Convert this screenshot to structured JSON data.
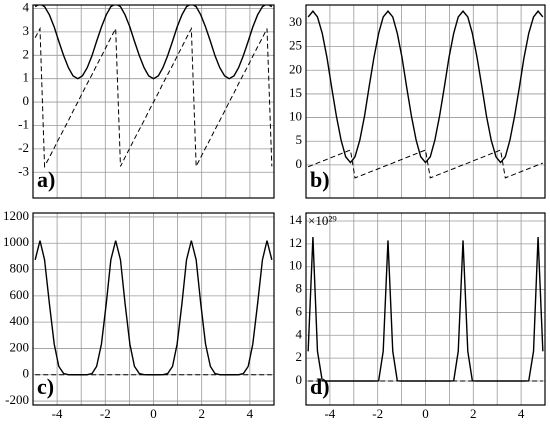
{
  "chart_data": [
    {
      "type": "line",
      "label": "a)",
      "xlim": [
        -5,
        5
      ],
      "ylim": [
        -4.1,
        4.15
      ],
      "xgrid": [
        -5,
        -4,
        -3,
        -2,
        -1,
        0,
        1,
        2,
        3,
        4,
        5
      ],
      "yticks": [
        -3,
        -2,
        -1,
        0,
        1,
        2,
        3,
        4
      ],
      "grid": true,
      "x": [
        -4.91,
        -4.71,
        -4.52,
        -4.32,
        -4.12,
        -3.93,
        -3.73,
        -3.53,
        -3.34,
        -3.14,
        -2.95,
        -2.75,
        -2.55,
        -2.36,
        -2.16,
        -1.96,
        -1.77,
        -1.57,
        -1.37,
        -1.18,
        -0.98,
        -0.79,
        -0.59,
        -0.39,
        -0.2,
        0,
        0.2,
        0.39,
        0.59,
        0.79,
        0.98,
        1.18,
        1.37,
        1.57,
        1.77,
        1.96,
        2.16,
        2.36,
        2.55,
        2.75,
        2.95,
        3.14,
        3.34,
        3.53,
        3.73,
        3.93,
        4.12,
        4.32,
        4.52,
        4.71,
        4.91
      ],
      "series": [
        {
          "style": "solid",
          "color": "#000000",
          "values": [
            4.08,
            4.2,
            4.08,
            3.73,
            3.21,
            2.6,
            1.99,
            1.47,
            1.12,
            1.0,
            1.12,
            1.47,
            1.99,
            2.6,
            3.21,
            3.73,
            4.08,
            4.2,
            4.08,
            3.73,
            3.21,
            2.6,
            1.99,
            1.47,
            1.12,
            1.0,
            1.12,
            1.47,
            1.99,
            2.6,
            3.21,
            3.73,
            4.08,
            4.2,
            4.08,
            3.73,
            3.21,
            2.6,
            1.99,
            1.47,
            1.12,
            1.0,
            1.12,
            1.47,
            1.99,
            2.6,
            3.21,
            3.73,
            4.08,
            4.2,
            4.08
          ]
        },
        {
          "style": "dashed",
          "color": "#000000",
          "values": [
            2.75,
            3.14,
            -2.75,
            -2.36,
            -1.96,
            -1.57,
            -1.18,
            -0.79,
            -0.39,
            0,
            0.39,
            0.79,
            1.18,
            1.57,
            1.96,
            2.36,
            2.75,
            3.14,
            -2.75,
            -2.36,
            -1.96,
            -1.57,
            -1.18,
            -0.79,
            -0.39,
            0,
            0.39,
            0.79,
            1.18,
            1.57,
            1.96,
            2.36,
            2.75,
            3.14,
            -2.75,
            -2.36,
            -1.96,
            -1.57,
            -1.18,
            -0.79,
            -0.39,
            0,
            0.39,
            0.79,
            1.18,
            1.57,
            1.96,
            2.36,
            2.75,
            3.14,
            -2.75
          ]
        }
      ]
    },
    {
      "type": "line",
      "label": "b)",
      "xlim": [
        -5,
        5
      ],
      "ylim": [
        -7,
        33.8
      ],
      "xgrid": [
        -5,
        -4,
        -3,
        -2,
        -1,
        0,
        1,
        2,
        3,
        4,
        5
      ],
      "yticks": [
        0,
        5,
        10,
        15,
        20,
        25,
        30
      ],
      "grid": true,
      "x": [
        -4.91,
        -4.71,
        -4.52,
        -4.32,
        -4.12,
        -3.93,
        -3.73,
        -3.53,
        -3.34,
        -3.14,
        -2.95,
        -2.75,
        -2.55,
        -2.36,
        -2.16,
        -1.96,
        -1.77,
        -1.57,
        -1.37,
        -1.18,
        -0.98,
        -0.79,
        -0.59,
        -0.39,
        -0.2,
        0,
        0.2,
        0.39,
        0.59,
        0.79,
        0.98,
        1.18,
        1.37,
        1.57,
        1.77,
        1.96,
        2.16,
        2.36,
        2.55,
        2.75,
        2.95,
        3.14,
        3.34,
        3.53,
        3.73,
        3.93,
        4.12,
        4.32,
        4.52,
        4.71,
        4.91
      ],
      "series": [
        {
          "style": "solid",
          "color": "#000000",
          "values": [
            31.28,
            32.5,
            31.28,
            27.81,
            22.63,
            16.5,
            10.37,
            5.19,
            1.72,
            0.5,
            1.72,
            5.19,
            10.37,
            16.5,
            22.63,
            27.81,
            31.28,
            32.5,
            31.28,
            27.81,
            22.63,
            16.5,
            10.37,
            5.19,
            1.72,
            0.5,
            1.72,
            5.19,
            10.37,
            16.5,
            22.63,
            27.81,
            31.28,
            32.5,
            31.28,
            27.81,
            22.63,
            16.5,
            10.37,
            5.19,
            1.72,
            0.5,
            1.72,
            5.19,
            10.37,
            16.5,
            22.63,
            27.81,
            31.28,
            32.5,
            31.28
          ]
        },
        {
          "style": "dashed",
          "color": "#000000",
          "values": [
            -0.39,
            0,
            0.39,
            0.79,
            1.18,
            1.57,
            1.96,
            2.36,
            2.75,
            3.14,
            -2.75,
            -2.36,
            -1.96,
            -1.57,
            -1.18,
            -0.79,
            -0.39,
            0,
            0.39,
            0.79,
            1.18,
            1.57,
            1.96,
            2.36,
            2.75,
            3.14,
            -2.75,
            -2.36,
            -1.96,
            -1.57,
            -1.18,
            -0.79,
            -0.39,
            0,
            0.39,
            0.79,
            1.18,
            1.57,
            1.96,
            2.36,
            2.75,
            3.14,
            -2.75,
            -2.36,
            -1.96,
            -1.57,
            -1.18,
            -0.79,
            -0.39,
            0,
            0.39
          ]
        }
      ]
    },
    {
      "type": "line",
      "label": "c)",
      "xlim": [
        -5,
        5
      ],
      "ylim": [
        -230,
        1230
      ],
      "xgrid": [
        -5,
        -4,
        -3,
        -2,
        -1,
        0,
        1,
        2,
        3,
        4,
        5
      ],
      "xticks": [
        -4,
        -2,
        0,
        2,
        4
      ],
      "yticks": [
        -200,
        0,
        200,
        400,
        600,
        800,
        1000,
        1200
      ],
      "grid": true,
      "x": [
        -4.91,
        -4.71,
        -4.52,
        -4.32,
        -4.12,
        -3.93,
        -3.73,
        -3.53,
        -3.34,
        -3.14,
        -2.95,
        -2.75,
        -2.55,
        -2.36,
        -2.16,
        -1.96,
        -1.77,
        -1.57,
        -1.37,
        -1.18,
        -0.98,
        -0.79,
        -0.59,
        -0.39,
        -0.2,
        0,
        0.2,
        0.39,
        0.59,
        0.79,
        0.98,
        1.18,
        1.37,
        1.57,
        1.77,
        1.96,
        2.16,
        2.36,
        2.55,
        2.75,
        2.95,
        3.14,
        3.34,
        3.53,
        3.73,
        3.93,
        4.12,
        4.32,
        4.52,
        4.71,
        4.91
      ],
      "series": [
        {
          "style": "solid",
          "color": "#000000",
          "values": [
            874,
            1020,
            874,
            541,
            233,
            63.8,
            9.2,
            0.5,
            0,
            0,
            0,
            0.5,
            9.2,
            63.8,
            233,
            541,
            874,
            1020,
            874,
            541,
            233,
            63.8,
            9.2,
            0.5,
            0,
            0,
            0,
            0.5,
            9.2,
            63.8,
            233,
            541,
            874,
            1020,
            874,
            541,
            233,
            63.8,
            9.2,
            0.5,
            0,
            0,
            0,
            0.5,
            9.2,
            63.8,
            233,
            541,
            874,
            1020,
            874
          ]
        },
        {
          "style": "dashed",
          "color": "#000000",
          "values": [
            0,
            0,
            0,
            0,
            0,
            0,
            0,
            0,
            0,
            0,
            0,
            0,
            0,
            0,
            0,
            0,
            0,
            0,
            0,
            0,
            0,
            0,
            0,
            0,
            0,
            0,
            0,
            0,
            0,
            0,
            0,
            0,
            0,
            0,
            0,
            0,
            0,
            0,
            0,
            0,
            0,
            0,
            0,
            0,
            0,
            0,
            0,
            0,
            0,
            0,
            0
          ]
        }
      ]
    },
    {
      "type": "line",
      "label": "d)",
      "multiplier": "×10²⁹",
      "xlim": [
        -5,
        5
      ],
      "ylim": [
        -2.1,
        14.7
      ],
      "xgrid": [
        -5,
        -4,
        -3,
        -2,
        -1,
        0,
        1,
        2,
        3,
        4,
        5
      ],
      "xticks": [
        -4,
        -2,
        0,
        2,
        4
      ],
      "yticks": [
        0,
        2,
        4,
        6,
        8,
        10,
        12,
        14
      ],
      "grid": true,
      "x": [
        -4.91,
        -4.71,
        -4.52,
        -4.32,
        -4.12,
        -3.93,
        -3.73,
        -3.53,
        -3.34,
        -3.14,
        -2.95,
        -2.75,
        -2.55,
        -2.36,
        -2.16,
        -1.96,
        -1.77,
        -1.57,
        -1.37,
        -1.18,
        -0.98,
        -0.79,
        -0.59,
        -0.39,
        -0.2,
        0,
        0.2,
        0.39,
        0.59,
        0.79,
        0.98,
        1.18,
        1.37,
        1.57,
        1.77,
        1.96,
        2.16,
        2.36,
        2.55,
        2.75,
        2.95,
        3.14,
        3.34,
        3.53,
        3.73,
        3.93,
        4.12,
        4.32,
        4.52,
        4.71,
        4.91
      ],
      "series": [
        {
          "style": "solid",
          "color": "#000000",
          "values": [
            2.6,
            12.6,
            2.6,
            0.02,
            0,
            0,
            0,
            0,
            0,
            0,
            0,
            0,
            0,
            0,
            0,
            0.02,
            2.6,
            12.3,
            2.6,
            0.02,
            0,
            0,
            0,
            0,
            0,
            0,
            0,
            0,
            0,
            0,
            0,
            0.02,
            2.6,
            12.3,
            2.6,
            0.02,
            0,
            0,
            0,
            0,
            0,
            0,
            0,
            0,
            0,
            0,
            0,
            0.02,
            2.6,
            12.6,
            2.6
          ]
        },
        {
          "style": "dashed",
          "color": "#000000",
          "values": [
            0,
            0,
            0,
            0,
            0,
            0,
            0,
            0,
            0,
            0,
            0,
            0,
            0,
            0,
            0,
            0,
            0,
            0,
            0,
            0,
            0,
            0,
            0,
            0,
            0,
            0,
            0,
            0,
            0,
            0,
            0,
            0,
            0,
            0,
            0,
            0,
            0,
            0,
            0,
            0,
            0,
            0,
            0,
            0,
            0,
            0,
            0,
            0,
            0,
            0,
            0
          ]
        }
      ]
    }
  ]
}
